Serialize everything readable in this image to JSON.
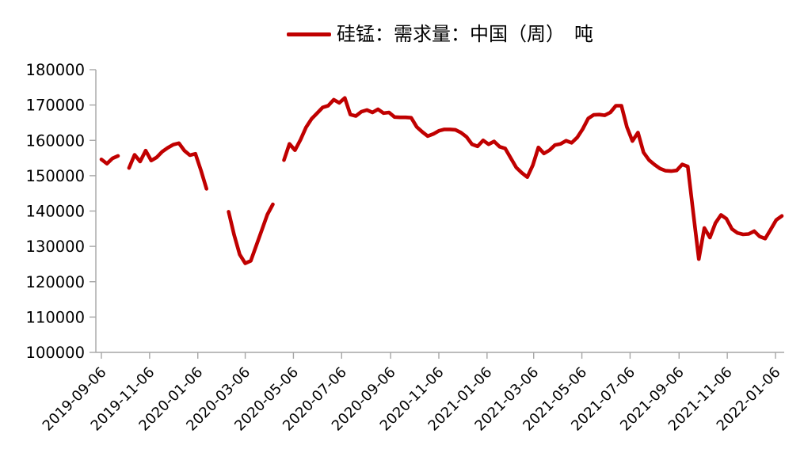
{
  "legend": {
    "label": "硅锰：需求量：中国（周）　吨",
    "swatch_color": "#c00000"
  },
  "chart_data": {
    "type": "line",
    "title": "硅锰：需求量：中国（周）　吨",
    "unit": "吨",
    "legend_position": "top-center",
    "grid": false,
    "colors": {
      "line": "#c00000",
      "axis": "#a6a6a6",
      "text": "#000000"
    },
    "y_axis": {
      "min": 100000,
      "max": 180000,
      "tick_interval": 10000,
      "tick_labels": [
        "180000",
        "170000",
        "160000",
        "150000",
        "140000",
        "130000",
        "120000",
        "110000",
        "100000"
      ]
    },
    "x_axis": {
      "first_date": "2019-09-06",
      "last_tick_date": "2022-01-06",
      "label_rotation_deg": -45,
      "tick_labels": [
        "2019-09-06",
        "2019-11-06",
        "2020-01-06",
        "2020-03-06",
        "2020-05-06",
        "2020-07-06",
        "2020-09-06",
        "2020-11-06",
        "2021-01-06",
        "2021-03-06",
        "2021-05-06",
        "2021-07-06",
        "2021-09-06",
        "2021-11-06",
        "2022-01-06"
      ]
    },
    "series": [
      {
        "name": "硅锰：需求量：中国（周）",
        "color": "#c00000",
        "points": [
          [
            "2019-09-06",
            154600
          ],
          [
            "2019-09-13",
            153400
          ],
          [
            "2019-09-20",
            154900
          ],
          [
            "2019-09-27",
            155600
          ],
          [
            "2019-10-04",
            null
          ],
          [
            "2019-10-11",
            152200
          ],
          [
            "2019-10-18",
            155900
          ],
          [
            "2019-10-25",
            154000
          ],
          [
            "2019-11-01",
            157100
          ],
          [
            "2019-11-08",
            154300
          ],
          [
            "2019-11-15",
            155200
          ],
          [
            "2019-11-22",
            156800
          ],
          [
            "2019-11-29",
            157900
          ],
          [
            "2019-12-06",
            158800
          ],
          [
            "2019-12-13",
            159200
          ],
          [
            "2019-12-20",
            157100
          ],
          [
            "2019-12-27",
            155800
          ],
          [
            "2020-01-03",
            156200
          ],
          [
            "2020-01-10",
            151500
          ],
          [
            "2020-01-17",
            146300
          ],
          [
            "2020-01-24",
            null
          ],
          [
            "2020-01-31",
            null
          ],
          [
            "2020-02-07",
            null
          ],
          [
            "2020-02-14",
            139800
          ],
          [
            "2020-02-21",
            133200
          ],
          [
            "2020-02-28",
            127700
          ],
          [
            "2020-03-06",
            125200
          ],
          [
            "2020-03-13",
            125900
          ],
          [
            "2020-03-20",
            130200
          ],
          [
            "2020-03-27",
            134600
          ],
          [
            "2020-04-03",
            139000
          ],
          [
            "2020-04-10",
            141900
          ],
          [
            "2020-04-17",
            null
          ],
          [
            "2020-04-24",
            154400
          ],
          [
            "2020-05-01",
            159000
          ],
          [
            "2020-05-08",
            157200
          ],
          [
            "2020-05-15",
            160200
          ],
          [
            "2020-05-22",
            163700
          ],
          [
            "2020-05-29",
            166100
          ],
          [
            "2020-06-05",
            167700
          ],
          [
            "2020-06-12",
            169300
          ],
          [
            "2020-06-19",
            169800
          ],
          [
            "2020-06-26",
            171500
          ],
          [
            "2020-07-03",
            170600
          ],
          [
            "2020-07-10",
            172000
          ],
          [
            "2020-07-17",
            167300
          ],
          [
            "2020-07-24",
            166900
          ],
          [
            "2020-07-31",
            168100
          ],
          [
            "2020-08-07",
            168600
          ],
          [
            "2020-08-14",
            167900
          ],
          [
            "2020-08-21",
            168800
          ],
          [
            "2020-08-28",
            167700
          ],
          [
            "2020-09-04",
            167900
          ],
          [
            "2020-09-11",
            166600
          ],
          [
            "2020-09-18",
            166500
          ],
          [
            "2020-09-25",
            166500
          ],
          [
            "2020-10-02",
            166400
          ],
          [
            "2020-10-09",
            163800
          ],
          [
            "2020-10-16",
            162400
          ],
          [
            "2020-10-23",
            161200
          ],
          [
            "2020-10-30",
            161800
          ],
          [
            "2020-11-06",
            162700
          ],
          [
            "2020-11-13",
            163100
          ],
          [
            "2020-11-20",
            163100
          ],
          [
            "2020-11-27",
            163000
          ],
          [
            "2020-12-04",
            162200
          ],
          [
            "2020-12-11",
            161000
          ],
          [
            "2020-12-18",
            158900
          ],
          [
            "2020-12-25",
            158300
          ],
          [
            "2021-01-01",
            160000
          ],
          [
            "2021-01-08",
            158900
          ],
          [
            "2021-01-15",
            159700
          ],
          [
            "2021-01-22",
            158200
          ],
          [
            "2021-01-29",
            157700
          ],
          [
            "2021-02-05",
            155000
          ],
          [
            "2021-02-12",
            152300
          ],
          [
            "2021-02-19",
            150800
          ],
          [
            "2021-02-26",
            149600
          ],
          [
            "2021-03-05",
            153000
          ],
          [
            "2021-03-12",
            158000
          ],
          [
            "2021-03-19",
            156300
          ],
          [
            "2021-03-26",
            157200
          ],
          [
            "2021-04-02",
            158700
          ],
          [
            "2021-04-09",
            159000
          ],
          [
            "2021-04-16",
            159900
          ],
          [
            "2021-04-23",
            159300
          ],
          [
            "2021-04-30",
            160800
          ],
          [
            "2021-05-07",
            163200
          ],
          [
            "2021-05-14",
            166200
          ],
          [
            "2021-05-21",
            167200
          ],
          [
            "2021-05-28",
            167300
          ],
          [
            "2021-06-04",
            167100
          ],
          [
            "2021-06-11",
            167900
          ],
          [
            "2021-06-18",
            169800
          ],
          [
            "2021-06-25",
            169800
          ],
          [
            "2021-07-02",
            163800
          ],
          [
            "2021-07-09",
            159800
          ],
          [
            "2021-07-16",
            162200
          ],
          [
            "2021-07-23",
            156600
          ],
          [
            "2021-07-30",
            154400
          ],
          [
            "2021-08-06",
            153100
          ],
          [
            "2021-08-13",
            152000
          ],
          [
            "2021-08-20",
            151400
          ],
          [
            "2021-08-27",
            151300
          ],
          [
            "2021-09-03",
            151500
          ],
          [
            "2021-09-10",
            153200
          ],
          [
            "2021-09-17",
            152600
          ],
          [
            "2021-09-24",
            139500
          ],
          [
            "2021-10-01",
            126400
          ],
          [
            "2021-10-08",
            135200
          ],
          [
            "2021-10-15",
            132500
          ],
          [
            "2021-10-22",
            136600
          ],
          [
            "2021-10-29",
            138900
          ],
          [
            "2021-11-05",
            137800
          ],
          [
            "2021-11-12",
            134900
          ],
          [
            "2021-11-19",
            133800
          ],
          [
            "2021-11-26",
            133400
          ],
          [
            "2021-12-03",
            133500
          ],
          [
            "2021-12-10",
            134300
          ],
          [
            "2021-12-17",
            132800
          ],
          [
            "2021-12-24",
            132200
          ],
          [
            "2021-12-31",
            134800
          ],
          [
            "2022-01-07",
            137500
          ],
          [
            "2022-01-14",
            138600
          ]
        ]
      }
    ]
  }
}
